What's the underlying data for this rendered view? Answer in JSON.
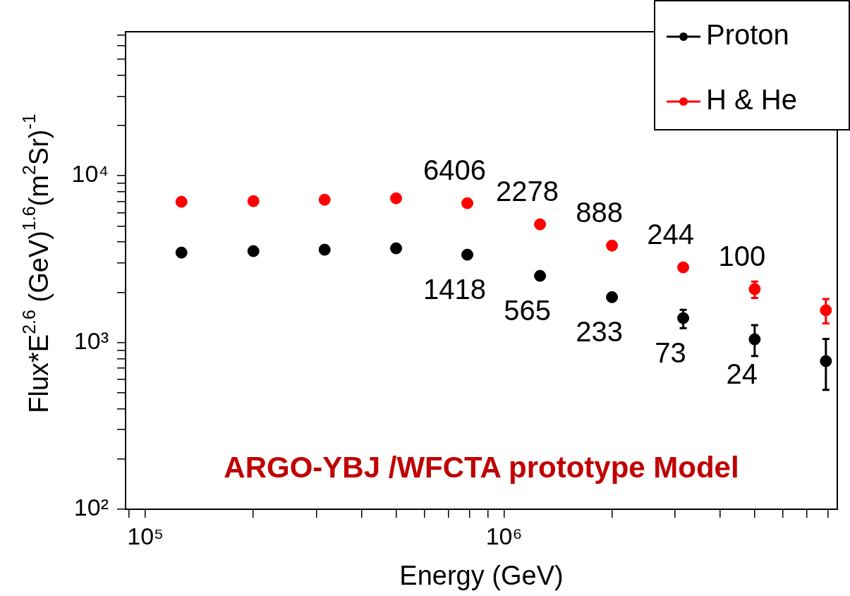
{
  "chart_data": {
    "type": "scatter",
    "xlabel": "Energy (GeV)",
    "ylabel": "Flux*E$^{2.6}$ (GeV)$^{1.6}$(m$^{2}$Sr)$^{-1}$",
    "x": [
      126000,
      200000,
      316000,
      500000,
      790000,
      1260000,
      2000000,
      3160000,
      5000000,
      7900000
    ],
    "series": [
      {
        "name": "Proton",
        "color": "#000000",
        "values": [
          3460,
          3530,
          3600,
          3670,
          3360,
          2510,
          1870,
          1400,
          1045,
          773
        ],
        "errors": [
          null,
          null,
          null,
          null,
          null,
          null,
          null,
          [
            1220,
            1570
          ],
          [
            830,
            1270
          ],
          [
            520,
            1050
          ]
        ]
      },
      {
        "name": "H & He",
        "color": "#ff0000",
        "values": [
          6980,
          7040,
          7180,
          7320,
          6840,
          5110,
          3810,
          2820,
          2090,
          1560
        ],
        "errors": [
          null,
          null,
          null,
          null,
          null,
          null,
          null,
          null,
          [
            1850,
            2320
          ],
          [
            1300,
            1820
          ]
        ]
      }
    ],
    "log": "xy",
    "xlim": [
      88000,
      8500000
    ],
    "ylim": [
      100,
      73000
    ],
    "xticks": [
      {
        "value": 90000,
        "label": null
      },
      {
        "value": 100000,
        "label": "10⁵"
      },
      {
        "value": 200000,
        "label": null
      },
      {
        "value": 300000,
        "label": null
      },
      {
        "value": 400000,
        "label": null
      },
      {
        "value": 500000,
        "label": null
      },
      {
        "value": 600000,
        "label": null
      },
      {
        "value": 700000,
        "label": null
      },
      {
        "value": 800000,
        "label": null
      },
      {
        "value": 900000,
        "label": null
      },
      {
        "value": 1000000,
        "label": "10⁶"
      },
      {
        "value": 2000000,
        "label": null
      },
      {
        "value": 3000000,
        "label": null
      },
      {
        "value": 4000000,
        "label": null
      },
      {
        "value": 5000000,
        "label": null
      },
      {
        "value": 6000000,
        "label": null
      },
      {
        "value": 7000000,
        "label": null
      },
      {
        "value": 8000000,
        "label": null
      }
    ],
    "yticks": [
      {
        "value": 100,
        "label": "10²"
      },
      {
        "value": 200,
        "label": null
      },
      {
        "value": 300,
        "label": null
      },
      {
        "value": 400,
        "label": null
      },
      {
        "value": 500,
        "label": null
      },
      {
        "value": 600,
        "label": null
      },
      {
        "value": 700,
        "label": null
      },
      {
        "value": 800,
        "label": null
      },
      {
        "value": 900,
        "label": null
      },
      {
        "value": 1000,
        "label": "10³"
      },
      {
        "value": 2000,
        "label": null
      },
      {
        "value": 3000,
        "label": null
      },
      {
        "value": 4000,
        "label": null
      },
      {
        "value": 5000,
        "label": null
      },
      {
        "value": 6000,
        "label": null
      },
      {
        "value": 7000,
        "label": null
      },
      {
        "value": 8000,
        "label": null
      },
      {
        "value": 9000,
        "label": null
      },
      {
        "value": 10000,
        "label": "10⁴"
      },
      {
        "value": 20000,
        "label": null
      },
      {
        "value": 30000,
        "label": null
      },
      {
        "value": 40000,
        "label": null
      },
      {
        "value": 50000,
        "label": null
      },
      {
        "value": 60000,
        "label": null
      },
      {
        "value": 70000,
        "label": null
      }
    ],
    "grid": false,
    "legend": "top right",
    "marker": "circle",
    "annotations": [
      {
        "text": "6406",
        "x": 790000,
        "y": 6840
      },
      {
        "text": "2278",
        "x": 1260000,
        "y": 5110
      },
      {
        "text": "888",
        "x": 2000000,
        "y": 3810
      },
      {
        "text": "244",
        "x": 3160000,
        "y": 2820
      },
      {
        "text": "100",
        "x": 5000000,
        "y": 2090
      },
      {
        "text": "1418",
        "x": 790000,
        "y": 3360
      },
      {
        "text": "565",
        "x": 1260000,
        "y": 2510
      },
      {
        "text": "233",
        "x": 2000000,
        "y": 1870
      },
      {
        "text": "73",
        "x": 3160000,
        "y": 1400
      },
      {
        "text": "24",
        "x": 5000000,
        "y": 1045
      },
      "ARGO-YBJ /WFCTA prototype Model"
    ]
  }
}
